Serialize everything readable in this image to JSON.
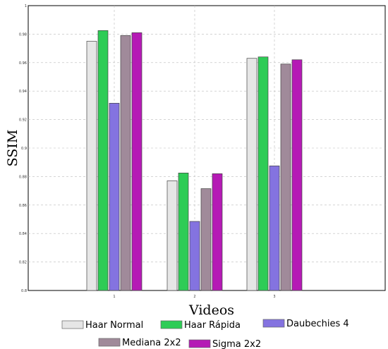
{
  "chart_data": {
    "type": "bar",
    "categories": [
      "1",
      "2",
      "3"
    ],
    "xlabel": "Videos",
    "ylabel": "SSIM",
    "ylim": [
      0.8,
      1.0
    ],
    "yticks": [
      "0.8",
      "0.82",
      "0.84",
      "0.86",
      "0.88",
      "0.9",
      "0.92",
      "0.94",
      "0.96",
      "0.98",
      "1"
    ],
    "grid": true,
    "legend_position": "bottom",
    "series": [
      {
        "name": "Haar Normal",
        "color": "#e6e6e6",
        "values": [
          0.975,
          0.877,
          0.963
        ]
      },
      {
        "name": "Haar Rápida",
        "color": "#2ecc56",
        "values": [
          0.9825,
          0.8825,
          0.964
        ]
      },
      {
        "name": "Daubechies 4",
        "color": "#8473e0",
        "values": [
          0.9315,
          0.8485,
          0.8875
        ]
      },
      {
        "name": "Mediana 2x2",
        "color": "#a08a9a",
        "values": [
          0.979,
          0.8715,
          0.959
        ]
      },
      {
        "name": "Sigma 2x2",
        "color": "#b51ab5",
        "values": [
          0.981,
          0.882,
          0.962
        ]
      }
    ]
  }
}
